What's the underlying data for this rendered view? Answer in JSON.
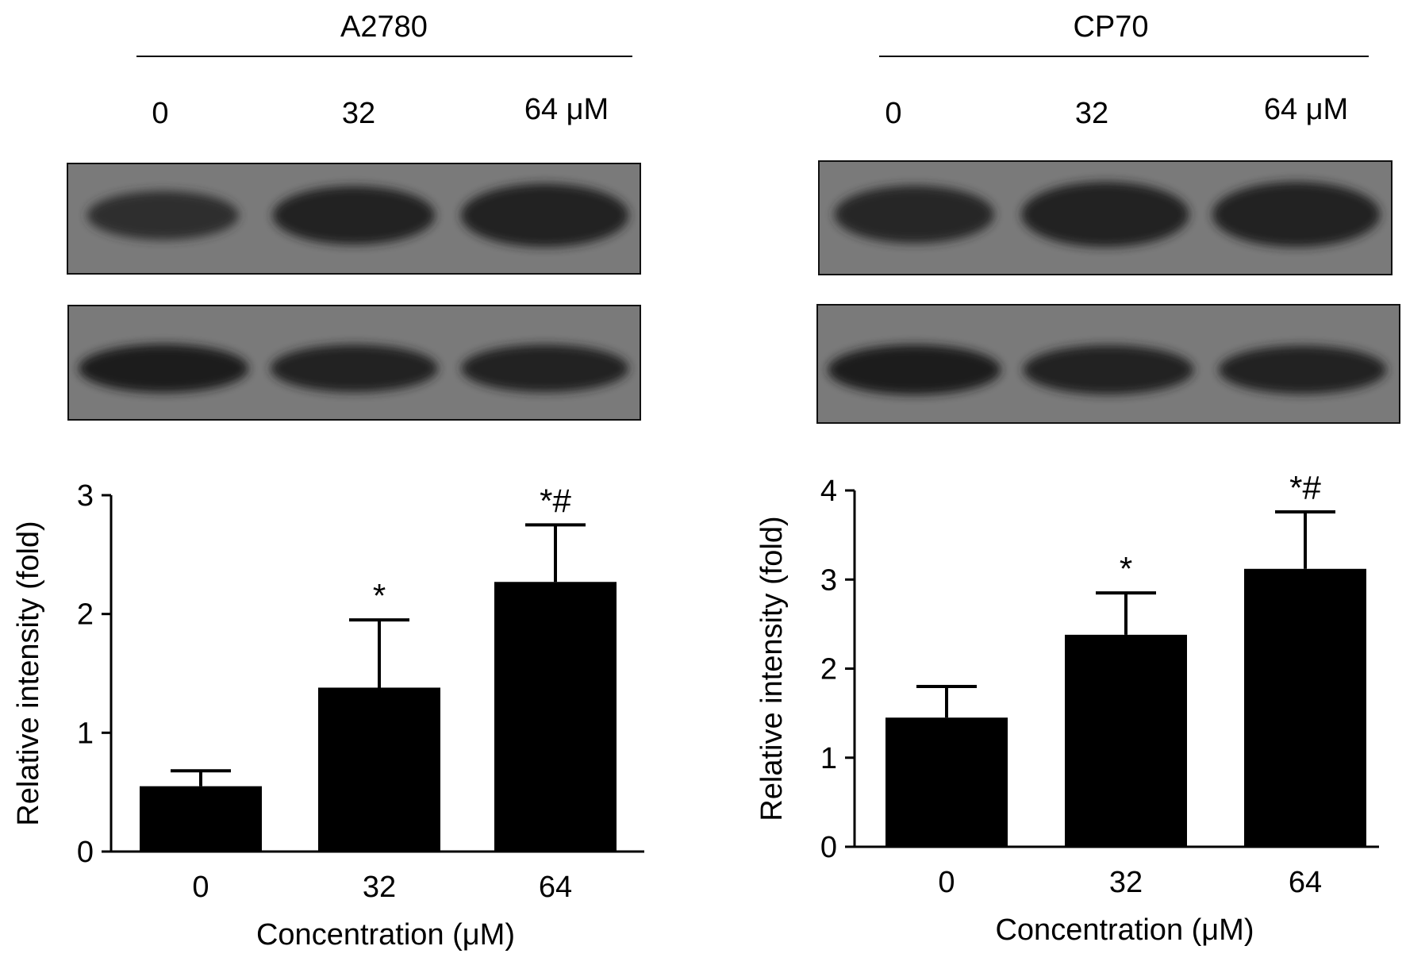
{
  "panels": [
    {
      "cell_line": "A2780",
      "lane_labels": [
        "0",
        "32",
        "64 μM"
      ],
      "blots": [
        {
          "band_intensity": [
            0.55,
            0.75,
            0.85
          ]
        },
        {
          "band_intensity": [
            0.9,
            0.85,
            0.85
          ]
        }
      ],
      "annotations": [
        "",
        "*",
        "*#"
      ]
    },
    {
      "cell_line": "CP70",
      "lane_labels": [
        "0",
        "32",
        "64 μM"
      ],
      "blots": [
        {
          "band_intensity": [
            0.7,
            0.85,
            0.85
          ]
        },
        {
          "band_intensity": [
            0.9,
            0.85,
            0.8
          ]
        }
      ],
      "annotations": [
        "",
        "*",
        "*#"
      ]
    }
  ],
  "chart_data": [
    {
      "type": "bar",
      "categories": [
        "0",
        "32",
        "64"
      ],
      "values": [
        0.55,
        1.38,
        2.27
      ],
      "errors": [
        0.13,
        0.57,
        0.48
      ],
      "xlabel": "Concentration (μM)",
      "ylabel": "Relative intensity (fold)",
      "ylim": [
        0,
        3
      ],
      "yticks": [
        "0",
        "1",
        "2",
        "3"
      ],
      "bar_color": "#000000"
    },
    {
      "type": "bar",
      "categories": [
        "0",
        "32",
        "64"
      ],
      "values": [
        1.45,
        2.38,
        3.12
      ],
      "errors": [
        0.35,
        0.47,
        0.64
      ],
      "xlabel": "Concentration (μM)",
      "ylabel": "Relative intensity (fold)",
      "ylim": [
        0,
        4
      ],
      "yticks": [
        "0",
        "1",
        "2",
        "3",
        "4"
      ],
      "bar_color": "#000000"
    }
  ]
}
